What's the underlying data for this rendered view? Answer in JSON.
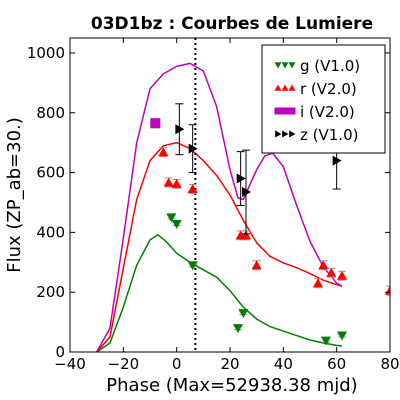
{
  "chart_data": {
    "type": "scatter",
    "title": "03D1bz : Courbes de Lumiere",
    "xlabel": "Phase (Max=52938.38 mjd)",
    "ylabel": "Flux (ZP_ab=30.)",
    "xlim": [
      -40,
      80
    ],
    "ylim": [
      0,
      1050
    ],
    "xticks": [
      -40,
      -20,
      0,
      20,
      40,
      60,
      80
    ],
    "yticks": [
      0,
      200,
      400,
      600,
      800,
      1000
    ],
    "max_line_x": 7,
    "legend_position": "top-right",
    "series": [
      {
        "name": "g (V1.0)",
        "color": "#008000",
        "marker": "triangle-down",
        "points": [
          {
            "x": -2,
            "y": 450,
            "err": 5
          },
          {
            "x": 0,
            "y": 428,
            "err": 5
          },
          {
            "x": 6,
            "y": 290,
            "err": 5
          },
          {
            "x": 23,
            "y": 80,
            "err": 5
          },
          {
            "x": 25,
            "y": 130,
            "err": 5
          },
          {
            "x": 56,
            "y": 38,
            "err": 5
          },
          {
            "x": 62,
            "y": 55,
            "err": 5
          }
        ],
        "model": [
          [
            -30,
            0
          ],
          [
            -25,
            30
          ],
          [
            -20,
            150
          ],
          [
            -15,
            290
          ],
          [
            -10,
            375
          ],
          [
            -7,
            392
          ],
          [
            -4,
            370
          ],
          [
            0,
            330
          ],
          [
            5,
            300
          ],
          [
            10,
            275
          ],
          [
            15,
            250
          ],
          [
            20,
            205
          ],
          [
            25,
            150
          ],
          [
            30,
            110
          ],
          [
            35,
            85
          ],
          [
            40,
            70
          ],
          [
            45,
            55
          ],
          [
            50,
            40
          ],
          [
            55,
            30
          ],
          [
            60,
            22
          ],
          [
            62,
            20
          ]
        ]
      },
      {
        "name": "r (V2.0)",
        "color": "#ff0000",
        "marker": "triangle-up",
        "points": [
          {
            "x": -5,
            "y": 668,
            "err": 15
          },
          {
            "x": -3,
            "y": 567,
            "err": 15
          },
          {
            "x": 0,
            "y": 562,
            "err": 15
          },
          {
            "x": 6,
            "y": 545,
            "err": 15
          },
          {
            "x": 24,
            "y": 390,
            "err": 15
          },
          {
            "x": 26,
            "y": 390,
            "err": 15
          },
          {
            "x": 30,
            "y": 290,
            "err": 15
          },
          {
            "x": 53,
            "y": 230,
            "err": 15
          },
          {
            "x": 55,
            "y": 290,
            "err": 15
          },
          {
            "x": 58,
            "y": 265,
            "err": 15
          },
          {
            "x": 62,
            "y": 255,
            "err": 15
          },
          {
            "x": 80,
            "y": 205,
            "err": 15
          }
        ],
        "model": [
          [
            -30,
            0
          ],
          [
            -25,
            50
          ],
          [
            -20,
            280
          ],
          [
            -15,
            510
          ],
          [
            -10,
            640
          ],
          [
            -5,
            690
          ],
          [
            0,
            700
          ],
          [
            5,
            680
          ],
          [
            10,
            640
          ],
          [
            15,
            590
          ],
          [
            20,
            525
          ],
          [
            25,
            440
          ],
          [
            30,
            365
          ],
          [
            35,
            320
          ],
          [
            40,
            298
          ],
          [
            45,
            282
          ],
          [
            50,
            262
          ],
          [
            55,
            240
          ],
          [
            60,
            225
          ],
          [
            62,
            220
          ]
        ]
      },
      {
        "name": "i (V2.0)",
        "color": "#bf00bf",
        "marker": "square",
        "points": [
          {
            "x": -8,
            "y": 765,
            "err": 15
          }
        ],
        "model": [
          [
            -30,
            0
          ],
          [
            -25,
            80
          ],
          [
            -20,
            380
          ],
          [
            -15,
            700
          ],
          [
            -10,
            880
          ],
          [
            -5,
            930
          ],
          [
            0,
            955
          ],
          [
            5,
            965
          ],
          [
            10,
            940
          ],
          [
            15,
            820
          ],
          [
            20,
            610
          ],
          [
            23,
            515
          ],
          [
            25,
            510
          ],
          [
            30,
            610
          ],
          [
            33,
            655
          ],
          [
            36,
            665
          ],
          [
            40,
            620
          ],
          [
            45,
            490
          ],
          [
            50,
            370
          ],
          [
            55,
            285
          ],
          [
            60,
            230
          ],
          [
            62,
            220
          ]
        ]
      },
      {
        "name": "z (V1.0)",
        "color": "#000000",
        "marker": "triangle-right",
        "points": [
          {
            "x": 1,
            "y": 745,
            "err": 85
          },
          {
            "x": 6,
            "y": 680,
            "err": 80
          },
          {
            "x": 24,
            "y": 580,
            "err": 90
          },
          {
            "x": 26,
            "y": 535,
            "err": 140
          },
          {
            "x": 60,
            "y": 640,
            "err": 95
          }
        ]
      }
    ]
  }
}
